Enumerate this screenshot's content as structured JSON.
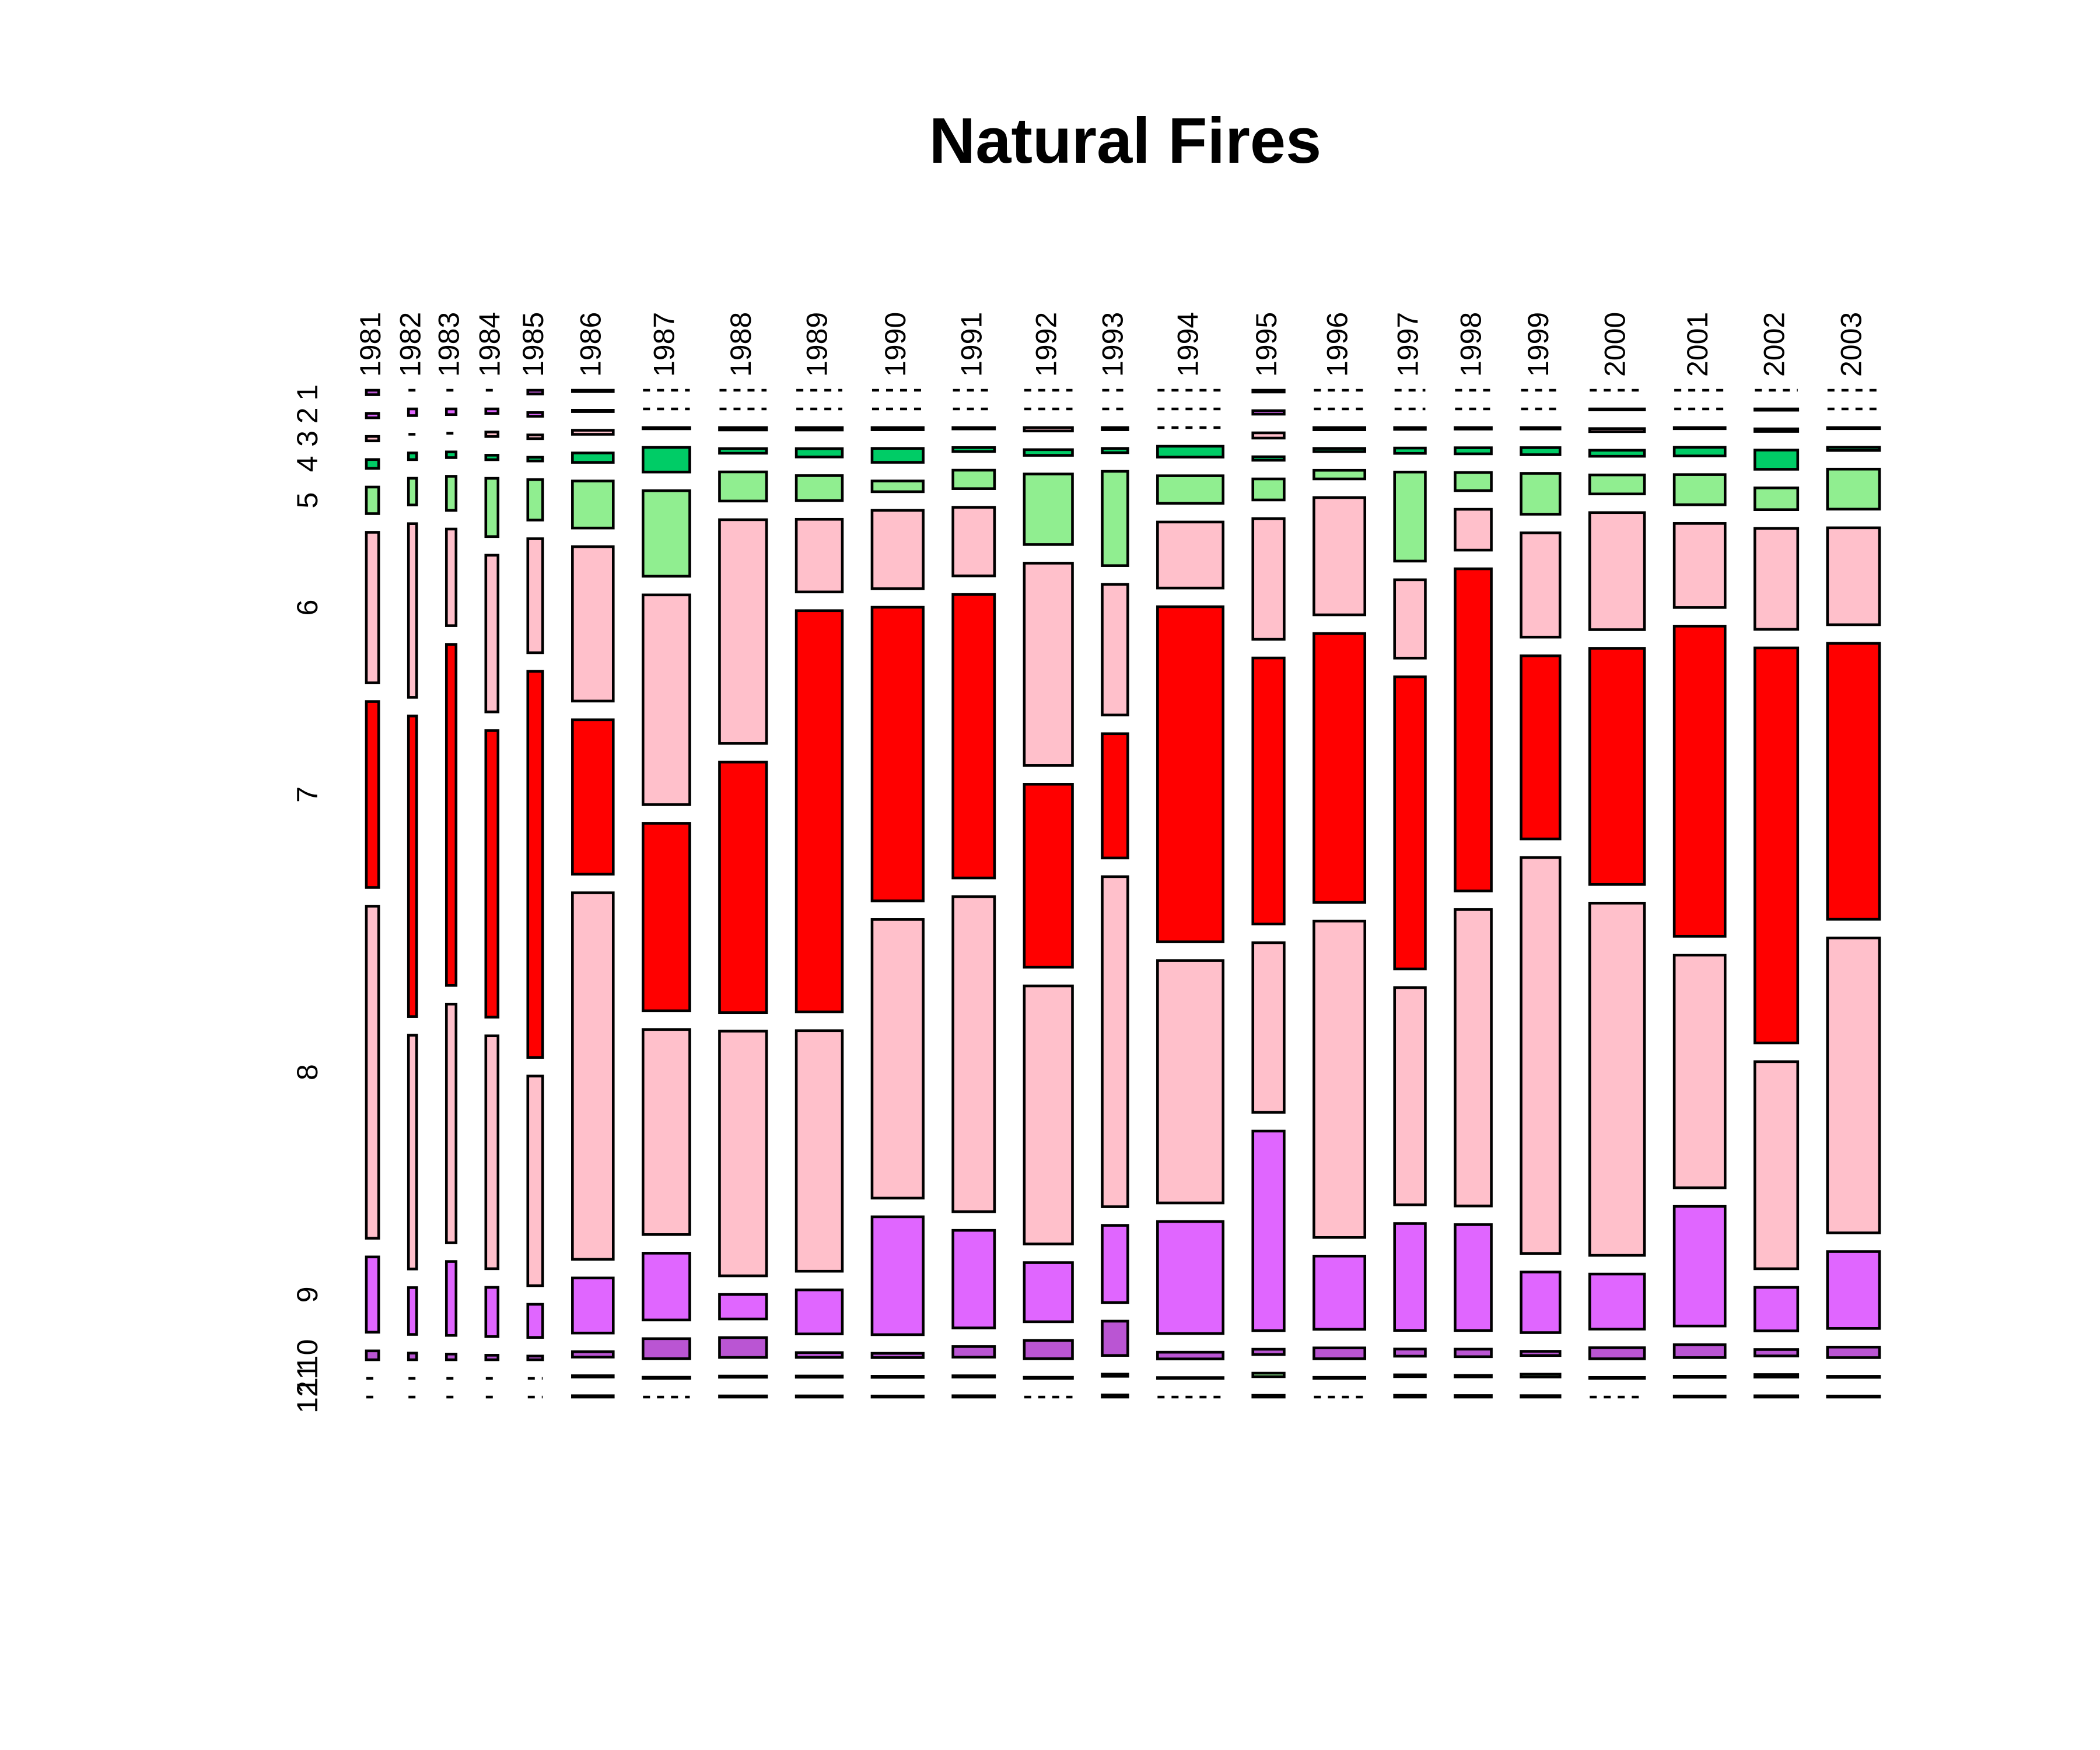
{
  "chart_data": {
    "type": "mosaic",
    "title": "Natural Fires",
    "categories": [
      "1981",
      "1982",
      "1983",
      "1984",
      "1985",
      "1986",
      "1987",
      "1988",
      "1989",
      "1990",
      "1991",
      "1992",
      "1993",
      "1994",
      "1995",
      "1996",
      "1997",
      "1998",
      "1999",
      "2000",
      "2001",
      "2002",
      "2003"
    ],
    "series": [
      {
        "name": "1",
        "color": "#BA55D3",
        "values": [
          1,
          0,
          0,
          0,
          1,
          1,
          0,
          0,
          0,
          0,
          0,
          0,
          0,
          0,
          1,
          0,
          0,
          0,
          0,
          0,
          0,
          0,
          0
        ]
      },
      {
        "name": "2",
        "color": "#E066FF",
        "values": [
          1,
          1,
          1,
          1,
          1,
          1,
          0,
          0,
          0,
          0,
          0,
          0,
          0,
          0,
          2,
          0,
          0,
          0,
          0,
          1,
          0,
          1,
          0
        ]
      },
      {
        "name": "3",
        "color": "#FFC0CB",
        "values": [
          1,
          0,
          0,
          1,
          1,
          3,
          1,
          2,
          2,
          2,
          1,
          3,
          1,
          0,
          3,
          2,
          1,
          1,
          1,
          3,
          1,
          2,
          1
        ]
      },
      {
        "name": "4",
        "color": "#00CC66",
        "values": [
          2,
          1,
          1,
          1,
          1,
          7,
          21,
          4,
          7,
          13,
          3,
          5,
          2,
          13,
          2,
          3,
          3,
          4,
          5,
          6,
          8,
          15,
          3
        ]
      },
      {
        "name": "5",
        "color": "#90EE90",
        "values": [
          6,
          4,
          6,
          13,
          11,
          35,
          73,
          25,
          21,
          10,
          14,
          62,
          44,
          33,
          12,
          8,
          50,
          12,
          29,
          19,
          28,
          17,
          38
        ]
      },
      {
        "name": "6",
        "color": "#FFC0CB",
        "values": [
          34,
          26,
          17,
          35,
          31,
          115,
          179,
          192,
          61,
          73,
          52,
          178,
          61,
          79,
          69,
          109,
          44,
          27,
          74,
          117,
          78,
          79,
          92
        ]
      },
      {
        "name": "7",
        "color": "#FF0000",
        "values": [
          42,
          45,
          60,
          64,
          105,
          115,
          160,
          215,
          337,
          274,
          215,
          161,
          58,
          401,
          152,
          250,
          164,
          213,
          130,
          236,
          288,
          309,
          262
        ]
      },
      {
        "name": "8",
        "color": "#FFC0CB",
        "values": [
          75,
          35,
          42,
          52,
          57,
          273,
          175,
          210,
          202,
          260,
          239,
          227,
          154,
          290,
          97,
          294,
          122,
          196,
          281,
          352,
          216,
          162,
          280
        ]
      },
      {
        "name": "9",
        "color": "#E066FF",
        "values": [
          17,
          7,
          13,
          11,
          9,
          41,
          57,
          21,
          37,
          110,
          74,
          52,
          36,
          134,
          114,
          68,
          60,
          70,
          43,
          55,
          111,
          34,
          73
        ]
      },
      {
        "name": "10",
        "color": "#BA55D3",
        "values": [
          2,
          1,
          1,
          1,
          1,
          4,
          17,
          17,
          4,
          4,
          8,
          16,
          16,
          8,
          3,
          10,
          4,
          5,
          3,
          11,
          12,
          5,
          10
        ]
      },
      {
        "name": "11",
        "color": "#90EE90",
        "values": [
          0,
          0,
          0,
          0,
          0,
          1,
          1,
          1,
          1,
          1,
          1,
          1,
          1,
          1,
          2,
          1,
          1,
          1,
          2,
          1,
          1,
          2,
          1
        ]
      },
      {
        "name": "12",
        "color": "#00CC66",
        "values": [
          0,
          0,
          0,
          0,
          0,
          1,
          0,
          1,
          1,
          1,
          1,
          0,
          1,
          0,
          1,
          0,
          1,
          1,
          1,
          0,
          1,
          1,
          1
        ]
      }
    ]
  }
}
